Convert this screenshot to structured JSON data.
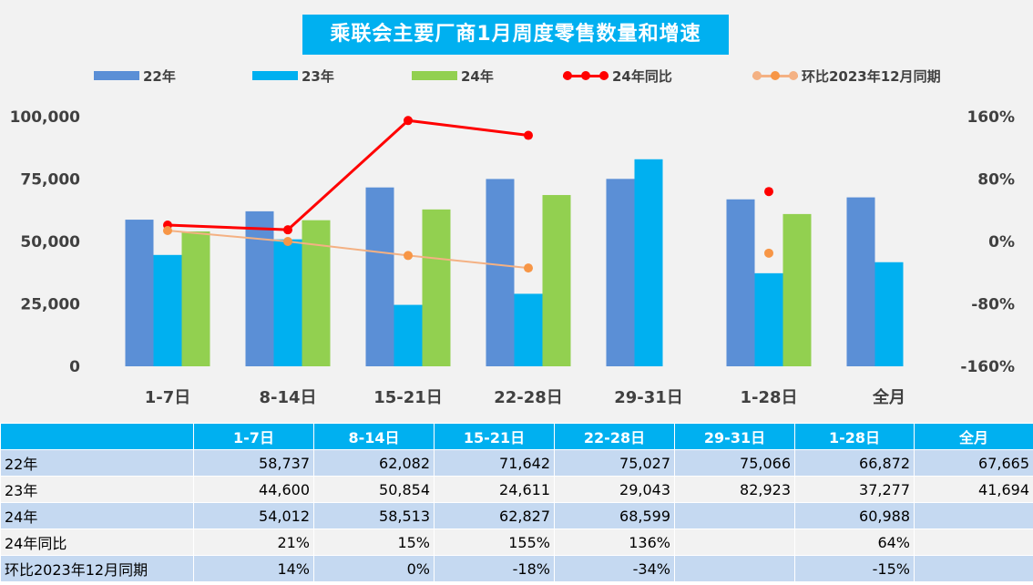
{
  "chart_data": {
    "type": "bar",
    "title": "乘联会主要厂商1月周度零售数量和增速",
    "categories": [
      "1-7日",
      "8-14日",
      "15-21日",
      "22-28日",
      "29-31日",
      "1-28日",
      "全月"
    ],
    "series": [
      {
        "name": "22年",
        "type": "bar",
        "axis": "left",
        "color": "#5b8fd6",
        "values": [
          58737,
          62082,
          71642,
          75027,
          75066,
          66872,
          67665
        ]
      },
      {
        "name": "23年",
        "type": "bar",
        "axis": "left",
        "color": "#00b0f0",
        "values": [
          44600,
          50854,
          24611,
          29043,
          82923,
          37277,
          41694
        ]
      },
      {
        "name": "24年",
        "type": "bar",
        "axis": "left",
        "color": "#92d050",
        "values": [
          54012,
          58513,
          62827,
          68599,
          null,
          60988,
          null
        ]
      },
      {
        "name": "24年同比",
        "type": "line",
        "axis": "right",
        "color": "#ff0000",
        "values": [
          21,
          15,
          155,
          136,
          null,
          64,
          null
        ]
      },
      {
        "name": "环比2023年12月同期",
        "type": "line",
        "axis": "right",
        "color": "#f4b183",
        "marker_color": "#f79646",
        "values": [
          14,
          0,
          -18,
          -34,
          null,
          -15,
          null
        ]
      }
    ],
    "y_left": {
      "min": 0,
      "max": 100000,
      "ticks": [
        "0",
        "25,000",
        "50,000",
        "75,000",
        "100,000"
      ],
      "tick_values": [
        0,
        25000,
        50000,
        75000,
        100000
      ]
    },
    "y_right": {
      "min": -160,
      "max": 160,
      "ticks": [
        "-160%",
        "-80%",
        "0%",
        "80%",
        "160%"
      ],
      "tick_values": [
        -160,
        -80,
        0,
        80,
        160
      ]
    },
    "legend_position": "top",
    "grid": false
  },
  "table": {
    "headers": [
      "",
      "1-7日",
      "8-14日",
      "15-21日",
      "22-28日",
      "29-31日",
      "1-28日",
      "全月"
    ],
    "rows": [
      {
        "label": "22年",
        "cells": [
          "58,737",
          "62,082",
          "71,642",
          "75,027",
          "75,066",
          "66,872",
          "67,665"
        ]
      },
      {
        "label": "23年",
        "cells": [
          "44,600",
          "50,854",
          "24,611",
          "29,043",
          "82,923",
          "37,277",
          "41,694"
        ]
      },
      {
        "label": "24年",
        "cells": [
          "54,012",
          "58,513",
          "62,827",
          "68,599",
          "",
          "60,988",
          ""
        ]
      },
      {
        "label": "24年同比",
        "cells": [
          "21%",
          "15%",
          "155%",
          "136%",
          "",
          "64%",
          ""
        ]
      },
      {
        "label": "环比2023年12月同期",
        "cells": [
          "14%",
          "0%",
          "-18%",
          "-34%",
          "",
          "-15%",
          ""
        ]
      }
    ]
  }
}
